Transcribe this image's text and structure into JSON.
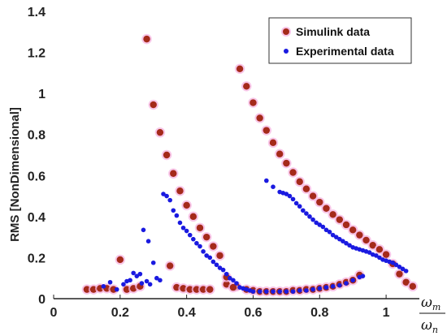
{
  "chart_data": {
    "type": "scatter",
    "title": "",
    "ylabel": "RMS [NonDimensional]",
    "xlabel_numerator": "ω",
    "xlabel_numerator_sub": "m",
    "xlabel_denominator": "ω",
    "xlabel_denominator_sub": "n",
    "xlim": [
      0,
      1.1
    ],
    "ylim": [
      0,
      1.4
    ],
    "x_ticks": [
      0,
      0.2,
      0.4,
      0.6,
      0.8,
      1
    ],
    "x_tick_labels": [
      "0",
      "0.2",
      "0.4",
      "0.6",
      "0.8",
      "1"
    ],
    "y_ticks": [
      0,
      0.2,
      0.4,
      0.6,
      0.8,
      1,
      1.2,
      1.4
    ],
    "y_tick_labels": [
      "0",
      "0.2",
      "0.4",
      "0.6",
      "0.8",
      "1",
      "1.2",
      "1.4"
    ],
    "grid": false,
    "legend": {
      "placement": "top-right"
    },
    "series": [
      {
        "name": "Simulink data",
        "color": "#a52a1a",
        "halo": "#f5b3e0",
        "points": [
          [
            0.1,
            0.045
          ],
          [
            0.12,
            0.045
          ],
          [
            0.14,
            0.05
          ],
          [
            0.16,
            0.05
          ],
          [
            0.18,
            0.045
          ],
          [
            0.2,
            0.19
          ],
          [
            0.22,
            0.045
          ],
          [
            0.24,
            0.05
          ],
          [
            0.26,
            0.06
          ],
          [
            0.28,
            1.265
          ],
          [
            0.3,
            0.945
          ],
          [
            0.32,
            0.81
          ],
          [
            0.34,
            0.7
          ],
          [
            0.35,
            0.16
          ],
          [
            0.36,
            0.61
          ],
          [
            0.37,
            0.055
          ],
          [
            0.38,
            0.525
          ],
          [
            0.39,
            0.05
          ],
          [
            0.4,
            0.455
          ],
          [
            0.41,
            0.045
          ],
          [
            0.42,
            0.4
          ],
          [
            0.43,
            0.045
          ],
          [
            0.44,
            0.345
          ],
          [
            0.45,
            0.045
          ],
          [
            0.46,
            0.3
          ],
          [
            0.47,
            0.045
          ],
          [
            0.48,
            0.255
          ],
          [
            0.5,
            0.21
          ],
          [
            0.52,
            0.07
          ],
          [
            0.55,
            0.06
          ],
          [
            0.56,
            1.12
          ],
          [
            0.58,
            1.035
          ],
          [
            0.6,
            0.955
          ],
          [
            0.62,
            0.88
          ],
          [
            0.64,
            0.82
          ],
          [
            0.66,
            0.76
          ],
          [
            0.68,
            0.705
          ],
          [
            0.7,
            0.66
          ],
          [
            0.72,
            0.615
          ],
          [
            0.74,
            0.57
          ],
          [
            0.76,
            0.535
          ],
          [
            0.78,
            0.5
          ],
          [
            0.8,
            0.47
          ],
          [
            0.82,
            0.44
          ],
          [
            0.84,
            0.41
          ],
          [
            0.86,
            0.385
          ],
          [
            0.88,
            0.36
          ],
          [
            0.9,
            0.335
          ],
          [
            0.92,
            0.31
          ],
          [
            0.94,
            0.285
          ],
          [
            0.96,
            0.26
          ],
          [
            0.98,
            0.24
          ],
          [
            1.0,
            0.215
          ],
          [
            1.02,
            0.17
          ],
          [
            1.04,
            0.12
          ],
          [
            1.06,
            0.08
          ],
          [
            1.08,
            0.06
          ],
          [
            0.58,
            0.045
          ],
          [
            0.6,
            0.04
          ],
          [
            0.62,
            0.035
          ],
          [
            0.64,
            0.035
          ],
          [
            0.66,
            0.035
          ],
          [
            0.68,
            0.035
          ],
          [
            0.7,
            0.035
          ],
          [
            0.72,
            0.04
          ],
          [
            0.74,
            0.04
          ],
          [
            0.76,
            0.045
          ],
          [
            0.78,
            0.045
          ],
          [
            0.8,
            0.05
          ],
          [
            0.82,
            0.055
          ],
          [
            0.84,
            0.06
          ],
          [
            0.86,
            0.07
          ],
          [
            0.88,
            0.08
          ],
          [
            0.9,
            0.09
          ],
          [
            0.92,
            0.115
          ],
          [
            0.52,
            0.105
          ],
          [
            0.54,
            0.055
          ]
        ]
      },
      {
        "name": "Experimental data",
        "color": "#1a1ae0",
        "points": [
          [
            0.15,
            0.06
          ],
          [
            0.17,
            0.08
          ],
          [
            0.19,
            0.045
          ],
          [
            0.21,
            0.07
          ],
          [
            0.22,
            0.085
          ],
          [
            0.23,
            0.09
          ],
          [
            0.24,
            0.125
          ],
          [
            0.25,
            0.11
          ],
          [
            0.26,
            0.12
          ],
          [
            0.265,
            0.075
          ],
          [
            0.27,
            0.335
          ],
          [
            0.28,
            0.085
          ],
          [
            0.285,
            0.28
          ],
          [
            0.29,
            0.07
          ],
          [
            0.3,
            0.175
          ],
          [
            0.31,
            0.1
          ],
          [
            0.32,
            0.09
          ],
          [
            0.33,
            0.51
          ],
          [
            0.34,
            0.5
          ],
          [
            0.35,
            0.48
          ],
          [
            0.36,
            0.43
          ],
          [
            0.37,
            0.405
          ],
          [
            0.38,
            0.37
          ],
          [
            0.39,
            0.345
          ],
          [
            0.4,
            0.33
          ],
          [
            0.41,
            0.31
          ],
          [
            0.42,
            0.29
          ],
          [
            0.43,
            0.27
          ],
          [
            0.44,
            0.255
          ],
          [
            0.45,
            0.23
          ],
          [
            0.46,
            0.21
          ],
          [
            0.47,
            0.2
          ],
          [
            0.48,
            0.18
          ],
          [
            0.49,
            0.165
          ],
          [
            0.5,
            0.15
          ],
          [
            0.51,
            0.14
          ],
          [
            0.52,
            0.12
          ],
          [
            0.53,
            0.1
          ],
          [
            0.54,
            0.09
          ],
          [
            0.55,
            0.075
          ],
          [
            0.56,
            0.055
          ],
          [
            0.57,
            0.05
          ],
          [
            0.58,
            0.045
          ],
          [
            0.59,
            0.04
          ],
          [
            0.6,
            0.035
          ],
          [
            0.64,
            0.575
          ],
          [
            0.66,
            0.545
          ],
          [
            0.68,
            0.52
          ],
          [
            0.69,
            0.515
          ],
          [
            0.7,
            0.51
          ],
          [
            0.71,
            0.5
          ],
          [
            0.72,
            0.485
          ],
          [
            0.73,
            0.465
          ],
          [
            0.74,
            0.45
          ],
          [
            0.75,
            0.43
          ],
          [
            0.76,
            0.415
          ],
          [
            0.77,
            0.4
          ],
          [
            0.78,
            0.385
          ],
          [
            0.79,
            0.37
          ],
          [
            0.8,
            0.36
          ],
          [
            0.81,
            0.35
          ],
          [
            0.82,
            0.335
          ],
          [
            0.83,
            0.325
          ],
          [
            0.84,
            0.31
          ],
          [
            0.85,
            0.3
          ],
          [
            0.86,
            0.29
          ],
          [
            0.87,
            0.28
          ],
          [
            0.88,
            0.27
          ],
          [
            0.89,
            0.26
          ],
          [
            0.9,
            0.25
          ],
          [
            0.91,
            0.245
          ],
          [
            0.92,
            0.24
          ],
          [
            0.93,
            0.235
          ],
          [
            0.94,
            0.23
          ],
          [
            0.95,
            0.225
          ],
          [
            0.96,
            0.215
          ],
          [
            0.97,
            0.21
          ],
          [
            0.98,
            0.2
          ],
          [
            0.99,
            0.19
          ],
          [
            1.0,
            0.185
          ],
          [
            1.01,
            0.18
          ],
          [
            1.02,
            0.175
          ],
          [
            1.03,
            0.165
          ],
          [
            1.04,
            0.155
          ],
          [
            1.05,
            0.145
          ],
          [
            1.06,
            0.135
          ],
          [
            0.62,
            0.035
          ],
          [
            0.64,
            0.035
          ],
          [
            0.66,
            0.035
          ],
          [
            0.68,
            0.035
          ],
          [
            0.7,
            0.035
          ],
          [
            0.72,
            0.035
          ],
          [
            0.74,
            0.04
          ],
          [
            0.76,
            0.04
          ],
          [
            0.78,
            0.045
          ],
          [
            0.8,
            0.05
          ],
          [
            0.82,
            0.055
          ],
          [
            0.84,
            0.06
          ],
          [
            0.86,
            0.065
          ],
          [
            0.88,
            0.075
          ],
          [
            0.9,
            0.09
          ],
          [
            0.92,
            0.105
          ],
          [
            0.93,
            0.11
          ]
        ]
      }
    ]
  }
}
